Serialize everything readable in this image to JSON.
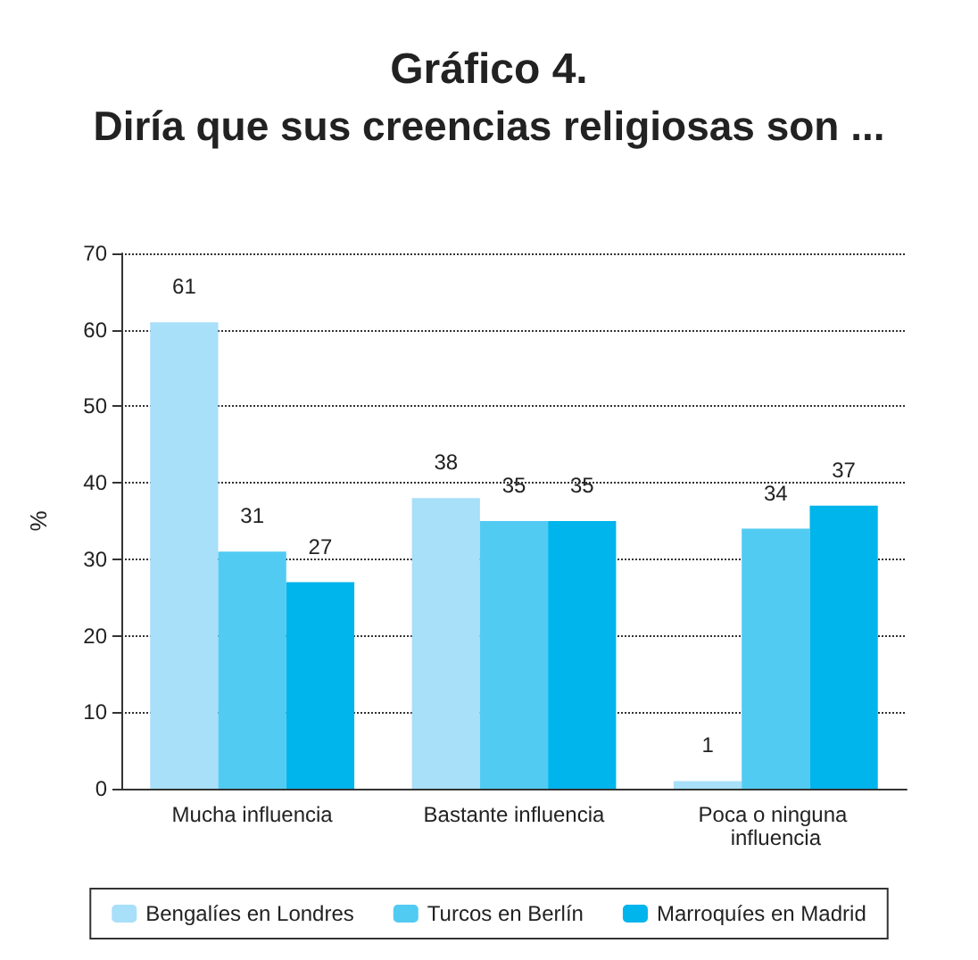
{
  "chart_data": {
    "type": "bar",
    "title": "Gráfico 4.",
    "subtitle": "Diría que sus creencias religiosas son ...",
    "ylabel": "%",
    "categories": [
      "Mucha influencia",
      "Bastante influencia",
      "Poca o ninguna influencia"
    ],
    "series": [
      {
        "name": "Bengalíes en Londres",
        "color": "#a8dff9",
        "values": [
          61,
          38,
          1
        ]
      },
      {
        "name": "Turcos en Berlín",
        "color": "#52cbf2",
        "values": [
          31,
          35,
          34
        ]
      },
      {
        "name": "Marroquíes en Madrid",
        "color": "#00b4ec",
        "values": [
          27,
          35,
          37
        ]
      }
    ],
    "ylim": [
      0,
      70
    ],
    "yticks": [
      0,
      10,
      20,
      30,
      40,
      50,
      60,
      70
    ],
    "grid": "y",
    "legend": "bottom",
    "data_labels": true
  }
}
